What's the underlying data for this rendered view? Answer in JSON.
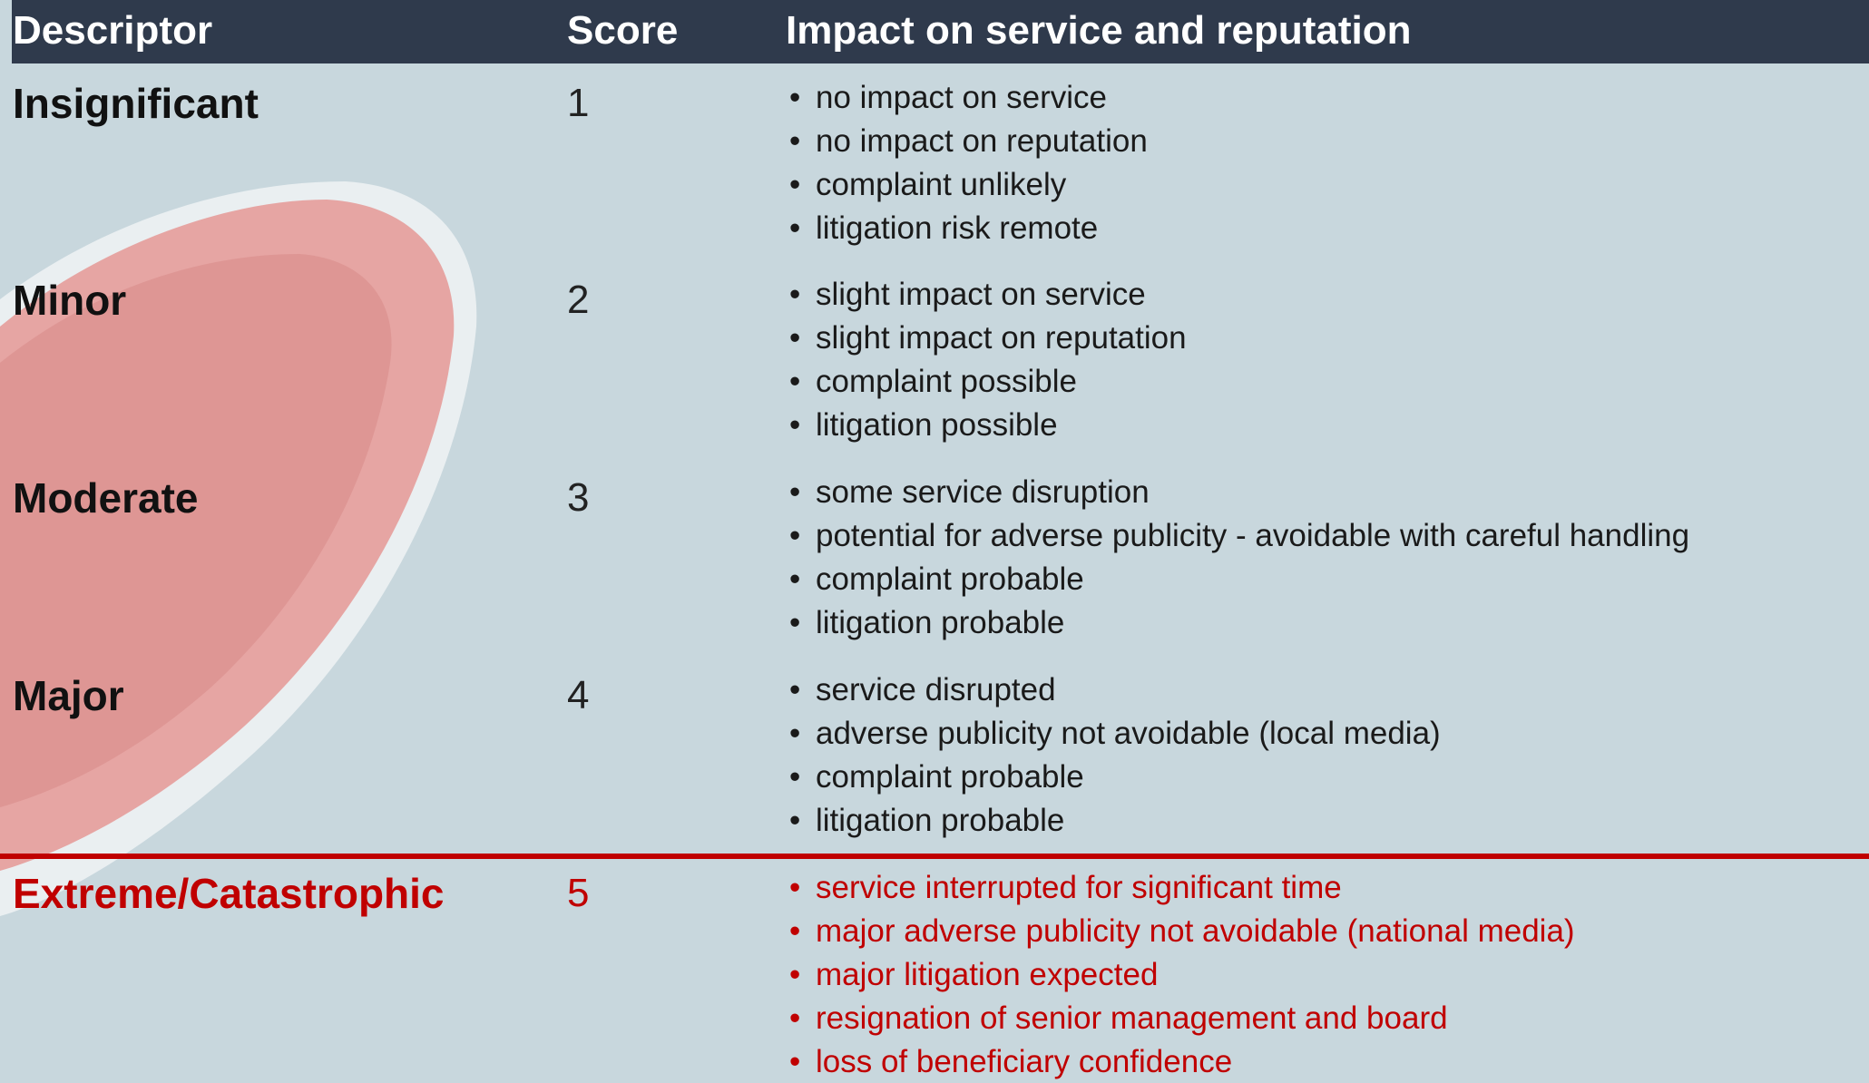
{
  "table": {
    "header": [
      "Descriptor",
      "Score",
      "Impact on service and reputation"
    ],
    "rows": [
      [
        "Insignificant",
        1,
        [
          "no impact on service",
          "no impact on reputation",
          "complaint unlikely",
          "litigation risk remote"
        ]
      ],
      [
        "Minor",
        2,
        [
          "slight impact on service",
          "slight impact on reputation",
          "complaint possible",
          "litigation possible"
        ]
      ],
      [
        "Moderate",
        3,
        [
          "some service disruption",
          "potential for adverse publicity - avoidable with careful handling",
          "complaint probable",
          "litigation probable"
        ]
      ],
      [
        "Major",
        4,
        [
          "service disrupted",
          "adverse publicity not avoidable (local media)",
          "complaint probable",
          "litigation probable"
        ]
      ],
      [
        "Extreme/Catastrophic",
        5,
        [
          "service interrupted for significant time",
          "major adverse publicity not avoidable (national media)",
          "major litigation expected",
          "resignation of senior management and board",
          "loss of beneficiary confidence"
        ]
      ]
    ]
  }
}
